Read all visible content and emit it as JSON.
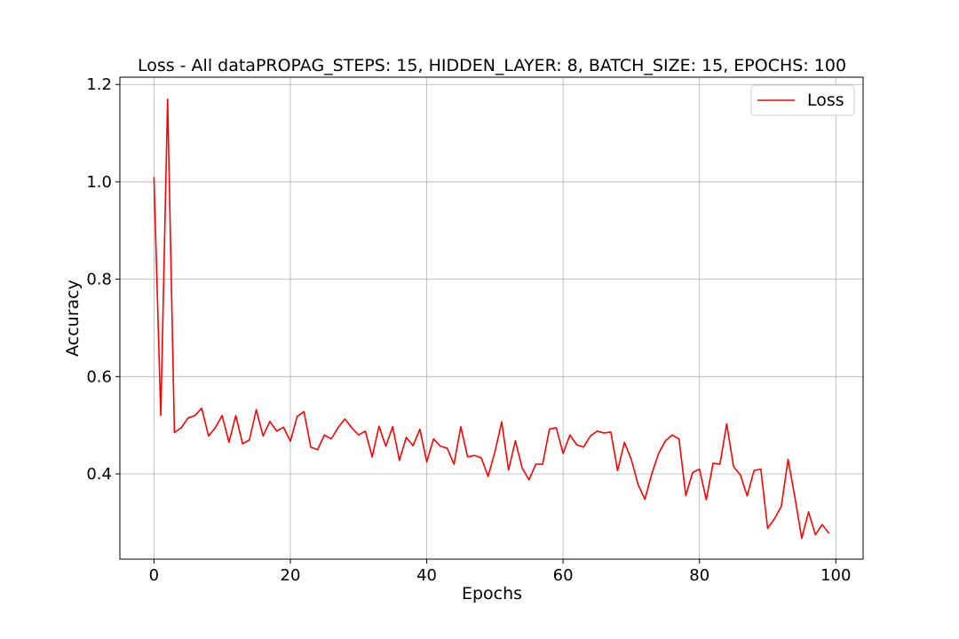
{
  "chart_data": {
    "type": "line",
    "title": "Loss - All dataPROPAG_STEPS: 15, HIDDEN_LAYER: 8, BATCH_SIZE: 15, EPOCHS: 100",
    "xlabel": "Epochs",
    "ylabel": "Accuracy",
    "xlim": [
      -5,
      104
    ],
    "ylim": [
      0.225,
      1.215
    ],
    "xticks": [
      0,
      20,
      40,
      60,
      80,
      100
    ],
    "yticks": [
      0.4,
      0.6,
      0.8,
      1.0,
      1.2
    ],
    "xtick_labels": [
      "0",
      "20",
      "40",
      "60",
      "80",
      "100"
    ],
    "ytick_labels": [
      "0.4",
      "0.6",
      "0.8",
      "1.0",
      "1.2"
    ],
    "grid": true,
    "legend_position": "top-right",
    "series": [
      {
        "name": "Loss",
        "color": "#ff0000",
        "x": [
          0,
          1,
          2,
          3,
          4,
          5,
          6,
          7,
          8,
          9,
          10,
          11,
          12,
          13,
          14,
          15,
          16,
          17,
          18,
          19,
          20,
          21,
          22,
          23,
          24,
          25,
          26,
          27,
          28,
          29,
          30,
          31,
          32,
          33,
          34,
          35,
          36,
          37,
          38,
          39,
          40,
          41,
          42,
          43,
          44,
          45,
          46,
          47,
          48,
          49,
          50,
          51,
          52,
          53,
          54,
          55,
          56,
          57,
          58,
          59,
          60,
          61,
          62,
          63,
          64,
          65,
          66,
          67,
          68,
          69,
          70,
          71,
          72,
          73,
          74,
          75,
          76,
          77,
          78,
          79,
          80,
          81,
          82,
          83,
          84,
          85,
          86,
          87,
          88,
          89,
          90,
          91,
          92,
          93,
          94,
          95,
          96,
          97,
          98,
          99
        ],
        "values": [
          1.01,
          0.52,
          1.17,
          0.485,
          0.495,
          0.515,
          0.52,
          0.535,
          0.478,
          0.495,
          0.52,
          0.465,
          0.52,
          0.462,
          0.47,
          0.532,
          0.478,
          0.508,
          0.488,
          0.496,
          0.467,
          0.518,
          0.528,
          0.455,
          0.45,
          0.48,
          0.472,
          0.495,
          0.513,
          0.495,
          0.48,
          0.488,
          0.435,
          0.498,
          0.457,
          0.497,
          0.428,
          0.475,
          0.458,
          0.492,
          0.425,
          0.472,
          0.457,
          0.453,
          0.42,
          0.497,
          0.435,
          0.438,
          0.433,
          0.395,
          0.445,
          0.507,
          0.408,
          0.468,
          0.412,
          0.388,
          0.42,
          0.42,
          0.492,
          0.495,
          0.442,
          0.48,
          0.46,
          0.455,
          0.478,
          0.488,
          0.484,
          0.486,
          0.407,
          0.465,
          0.43,
          0.378,
          0.348,
          0.4,
          0.442,
          0.468,
          0.48,
          0.472,
          0.356,
          0.403,
          0.41,
          0.347,
          0.422,
          0.42,
          0.503,
          0.415,
          0.398,
          0.355,
          0.407,
          0.41,
          0.288,
          0.308,
          0.333,
          0.43,
          0.352,
          0.268,
          0.322,
          0.275,
          0.296,
          0.278
        ]
      }
    ]
  }
}
